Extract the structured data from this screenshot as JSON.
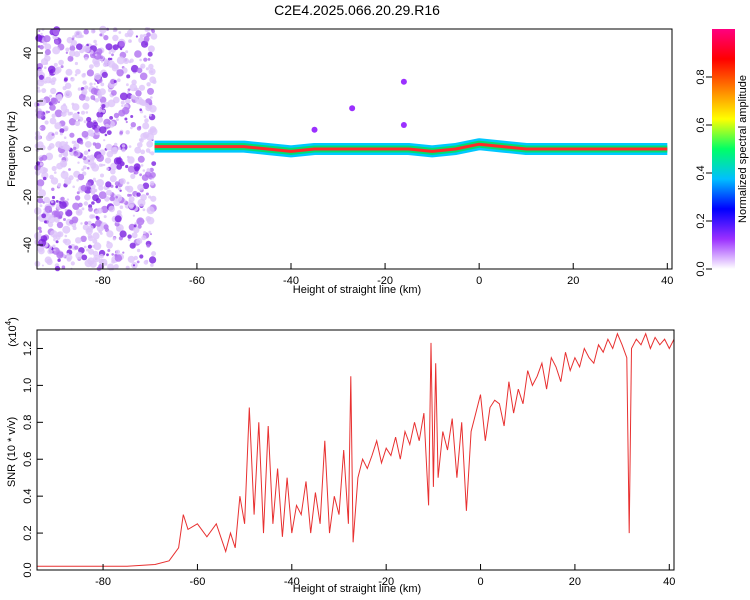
{
  "title": "C2E4.2025.066.20.29.R16",
  "chart_data": [
    {
      "type": "heatmap",
      "name": "spectrogram",
      "xlabel": "Height of straight line (km)",
      "ylabel": "Frequency (Hz)",
      "xlim": [
        -94,
        41
      ],
      "ylim": [
        -50,
        50
      ],
      "xticks": [
        -80,
        -60,
        -40,
        -20,
        0,
        20,
        40
      ],
      "yticks": [
        -40,
        -20,
        0,
        20,
        40
      ],
      "colorbar": {
        "label": "Normalized spectral amplitude",
        "range": [
          0,
          1
        ],
        "ticks": [
          0.0,
          0.2,
          0.4,
          0.6,
          0.8
        ],
        "colors": [
          "#ffffff",
          "#9b30ff",
          "#0000ff",
          "#00bfff",
          "#00ff66",
          "#ffff00",
          "#ff8000",
          "#ff0000",
          "#ff0080"
        ]
      },
      "noise_region_x": [
        -94,
        -69
      ],
      "signal_line": {
        "x": [
          -69,
          -60,
          -50,
          -45,
          -40,
          -35,
          -30,
          -25,
          -20,
          -15,
          -10,
          -5,
          0,
          5,
          10,
          20,
          30,
          40
        ],
        "y": [
          1,
          1,
          1,
          0,
          -1,
          0,
          0,
          0,
          0,
          0,
          -1,
          0,
          2,
          1,
          0,
          0,
          0,
          0
        ]
      },
      "scatter_points": [
        {
          "x": -27,
          "y": 17
        },
        {
          "x": -16,
          "y": 10
        },
        {
          "x": -35,
          "y": 8
        },
        {
          "x": -16,
          "y": 28
        }
      ]
    },
    {
      "type": "line",
      "name": "snr",
      "xlabel": "Height of straight line (km)",
      "ylabel": "SNR (10 * v/v)",
      "yscale_label": "(x10",
      "yscale_exp": "4",
      "yscale_close": ")",
      "xlim": [
        -94,
        41
      ],
      "ylim": [
        0,
        1.3
      ],
      "xticks": [
        -80,
        -60,
        -40,
        -20,
        0,
        20,
        40
      ],
      "yticks": [
        0.0,
        0.2,
        0.4,
        0.6,
        0.8,
        1.0,
        1.2
      ],
      "color": "#e83030",
      "series": [
        {
          "x": [
            -94,
            -85,
            -75,
            -69,
            -66,
            -64,
            -63,
            -62,
            -60,
            -58,
            -56,
            -54,
            -53,
            -52,
            -51,
            -50,
            -49,
            -48,
            -47,
            -46,
            -45,
            -44,
            -43,
            -42,
            -41,
            -40,
            -39,
            -38,
            -37,
            -36,
            -35,
            -34,
            -33,
            -32,
            -31,
            -30,
            -29,
            -28,
            -27.5,
            -27,
            -26,
            -25,
            -24,
            -23,
            -22,
            -21,
            -20,
            -19,
            -18,
            -17,
            -16,
            -15,
            -14,
            -13,
            -12,
            -11,
            -10.5,
            -10,
            -9.5,
            -9,
            -8,
            -7,
            -6,
            -5,
            -4,
            -3,
            -2,
            -1,
            0,
            1,
            2,
            3,
            4,
            5,
            6,
            7,
            8,
            9,
            10,
            11,
            12,
            13,
            14,
            15,
            16,
            17,
            18,
            19,
            20,
            21,
            22,
            23,
            24,
            25,
            26,
            27,
            28,
            29,
            30,
            31,
            31.5,
            32,
            33,
            34,
            35,
            36,
            37,
            38,
            39,
            40,
            41
          ],
          "y": [
            0.02,
            0.02,
            0.02,
            0.03,
            0.05,
            0.12,
            0.3,
            0.22,
            0.25,
            0.18,
            0.25,
            0.1,
            0.2,
            0.12,
            0.4,
            0.25,
            0.88,
            0.3,
            0.8,
            0.2,
            0.78,
            0.25,
            0.55,
            0.18,
            0.5,
            0.2,
            0.35,
            0.3,
            0.48,
            0.2,
            0.42,
            0.25,
            0.7,
            0.2,
            0.4,
            0.3,
            0.65,
            0.25,
            1.05,
            0.15,
            0.5,
            0.6,
            0.55,
            0.62,
            0.7,
            0.58,
            0.66,
            0.62,
            0.72,
            0.6,
            0.75,
            0.68,
            0.8,
            0.7,
            0.85,
            0.35,
            1.23,
            0.45,
            1.12,
            0.5,
            0.75,
            0.65,
            0.82,
            0.5,
            0.8,
            0.32,
            0.75,
            0.85,
            0.95,
            0.7,
            0.88,
            0.92,
            0.9,
            0.78,
            1.02,
            0.85,
            0.98,
            0.9,
            1.08,
            1.0,
            1.05,
            1.12,
            0.98,
            1.15,
            1.1,
            1.02,
            1.18,
            1.08,
            1.15,
            1.1,
            1.2,
            1.15,
            1.12,
            1.22,
            1.18,
            1.25,
            1.2,
            1.28,
            1.22,
            1.15,
            0.2,
            1.2,
            1.25,
            1.22,
            1.28,
            1.2,
            1.26,
            1.22,
            1.25,
            1.2,
            1.25
          ]
        }
      ]
    }
  ]
}
